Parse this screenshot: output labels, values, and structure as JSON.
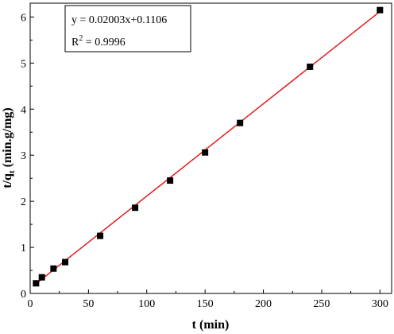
{
  "chart_data": {
    "type": "scatter",
    "xlabel": "t (min)",
    "ylabel_main": "t/q",
    "ylabel_sub": "t",
    "ylabel_rest": " (min.g/mg)",
    "xlim": [
      0,
      310
    ],
    "ylim": [
      0,
      6.3
    ],
    "x_ticks": [
      0,
      50,
      100,
      150,
      200,
      250,
      300
    ],
    "y_ticks": [
      0,
      1,
      2,
      3,
      4,
      5,
      6
    ],
    "grid": false,
    "points": [
      {
        "x": 5,
        "y": 0.22
      },
      {
        "x": 10,
        "y": 0.35
      },
      {
        "x": 20,
        "y": 0.54
      },
      {
        "x": 30,
        "y": 0.68
      },
      {
        "x": 60,
        "y": 1.25
      },
      {
        "x": 90,
        "y": 1.86
      },
      {
        "x": 120,
        "y": 2.45
      },
      {
        "x": 150,
        "y": 3.06
      },
      {
        "x": 180,
        "y": 3.7
      },
      {
        "x": 240,
        "y": 4.92
      },
      {
        "x": 300,
        "y": 6.15
      }
    ],
    "fit": {
      "slope": 0.02003,
      "intercept": 0.1106,
      "x_range": [
        5,
        300
      ],
      "color": "#e3191c"
    },
    "annotation": {
      "equation": "y = 0.02003x+0.1106",
      "r2_prefix": "R",
      "r2_sup": "2",
      "r2_rest": " = 0.9996",
      "placement": "top-left"
    },
    "marker_color": "#000000"
  }
}
